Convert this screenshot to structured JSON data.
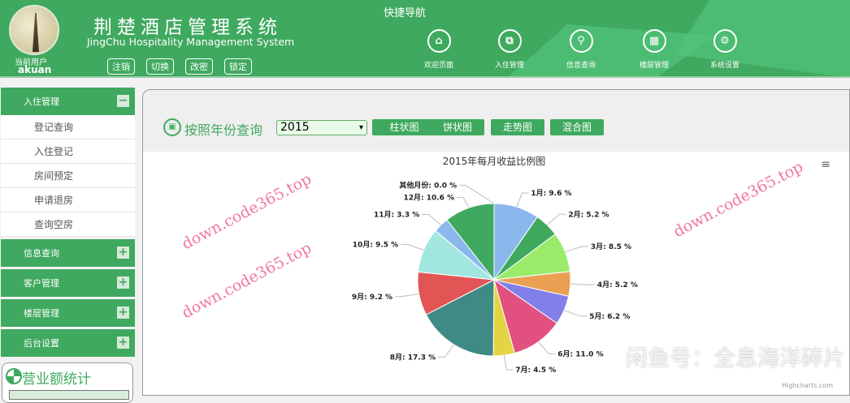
{
  "header": {
    "title": "荆楚酒店管理系统",
    "subtitle": "JingChu Hospitality Management System",
    "current_user_label": "当前用户",
    "username": "akuan",
    "buttons": [
      "注销",
      "切换",
      "改密",
      "锁定"
    ],
    "quick_nav_title": "快捷导航",
    "quick_nav": [
      {
        "label": "欢迎页面",
        "icon": "home-icon"
      },
      {
        "label": "入住管理",
        "icon": "checkin-icon"
      },
      {
        "label": "信息查询",
        "icon": "search-icon"
      },
      {
        "label": "楼层管理",
        "icon": "grid-icon"
      },
      {
        "label": "系统设置",
        "icon": "gear-icon"
      }
    ]
  },
  "sidebar": {
    "groups": [
      {
        "label": "入住管理",
        "expanded": true,
        "items": [
          "登记查询",
          "入住登记",
          "房间预定",
          "申请退房",
          "查询空房"
        ]
      },
      {
        "label": "信息查询"
      },
      {
        "label": "客户管理"
      },
      {
        "label": "楼层管理"
      },
      {
        "label": "后台设置"
      }
    ],
    "stats_title": "营业额统计"
  },
  "query": {
    "label": "按照年份查询",
    "year": "2015",
    "buttons": [
      "柱状图",
      "饼状图",
      "走势图",
      "混合图"
    ]
  },
  "chart_data": {
    "type": "pie",
    "title": "2015年每月收益比例图",
    "credits": "Highcharts.com",
    "categories": [
      "其他月份",
      "1月",
      "2月",
      "3月",
      "4月",
      "5月",
      "6月",
      "7月",
      "8月",
      "9月",
      "10月",
      "11月",
      "12月"
    ],
    "values": [
      0.0,
      9.6,
      5.2,
      8.5,
      5.2,
      6.2,
      11.0,
      4.5,
      17.3,
      9.2,
      9.5,
      3.3,
      10.6
    ],
    "colors": [
      "#7cb5ec",
      "#8bb8ec",
      "#3fa95f",
      "#9aeb6a",
      "#eaa052",
      "#8080e8",
      "#e25080",
      "#e4d444",
      "#3f8a84",
      "#e25555",
      "#a2e6e0",
      "#8bb8ec",
      "#3fa95f"
    ]
  },
  "watermarks": [
    "down.code365.top",
    "down.code365.top",
    "down.code365.top",
    "闲鱼号：全息海洋碎片"
  ]
}
